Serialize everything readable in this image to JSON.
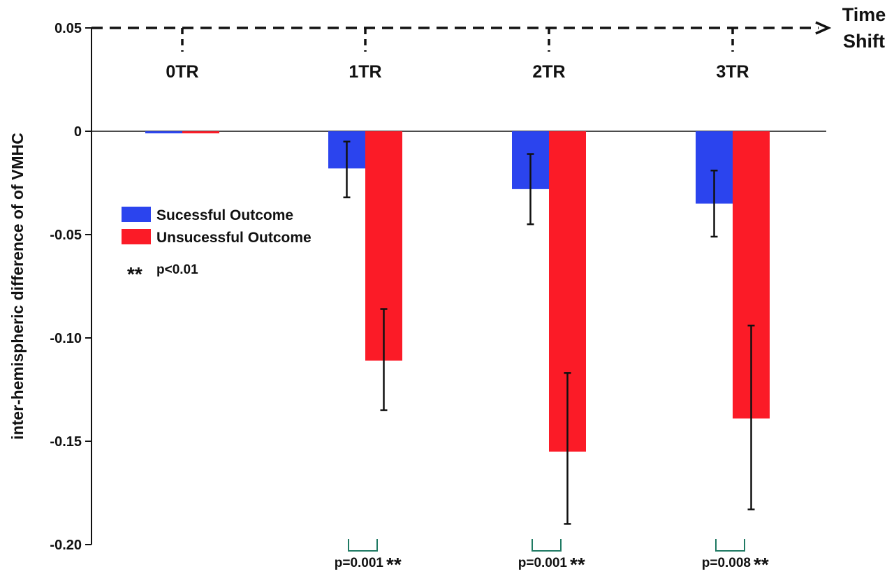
{
  "chart_data": {
    "type": "bar",
    "title": "",
    "ylabel": "inter-hemispheric difference of of VMHC",
    "xlabel": "Time Shift",
    "xlabel_lines": [
      "Time",
      "Shift"
    ],
    "categories": [
      "0TR",
      "1TR",
      "2TR",
      "3TR"
    ],
    "ylim": [
      -0.2,
      0.05
    ],
    "yticks": [
      0.05,
      0,
      -0.05,
      -0.1,
      -0.15,
      -0.2
    ],
    "ytick_labels": [
      "0.05",
      "0",
      "-0.05",
      "-0.10",
      "-0.15",
      "-0.20"
    ],
    "series": [
      {
        "name": "Sucessful Outcome",
        "color": "#2b44ee",
        "values": [
          -0.001,
          -0.018,
          -0.028,
          -0.035
        ],
        "error_low": [
          -0.001,
          -0.032,
          -0.045,
          -0.051
        ],
        "error_high": [
          -0.001,
          -0.005,
          -0.011,
          -0.019
        ]
      },
      {
        "name": "Unsucessful Outcome",
        "color": "#fb1b27",
        "values": [
          -0.001,
          -0.111,
          -0.155,
          -0.139
        ],
        "error_low": [
          -0.001,
          -0.135,
          -0.19,
          -0.183
        ],
        "error_high": [
          -0.001,
          -0.086,
          -0.117,
          -0.094
        ]
      }
    ],
    "significance": [
      {
        "category": "1TR",
        "p_text": "p=0.001",
        "stars": "**"
      },
      {
        "category": "2TR",
        "p_text": "p=0.001",
        "stars": "**"
      },
      {
        "category": "3TR",
        "p_text": "p=0.008",
        "stars": "**"
      }
    ],
    "legend": {
      "placement": "left-middle",
      "note_stars": "**",
      "note_text": "p<0.01"
    },
    "grid": false,
    "colors": {
      "axis": "#111111",
      "bracket": "#1f7a63"
    }
  }
}
